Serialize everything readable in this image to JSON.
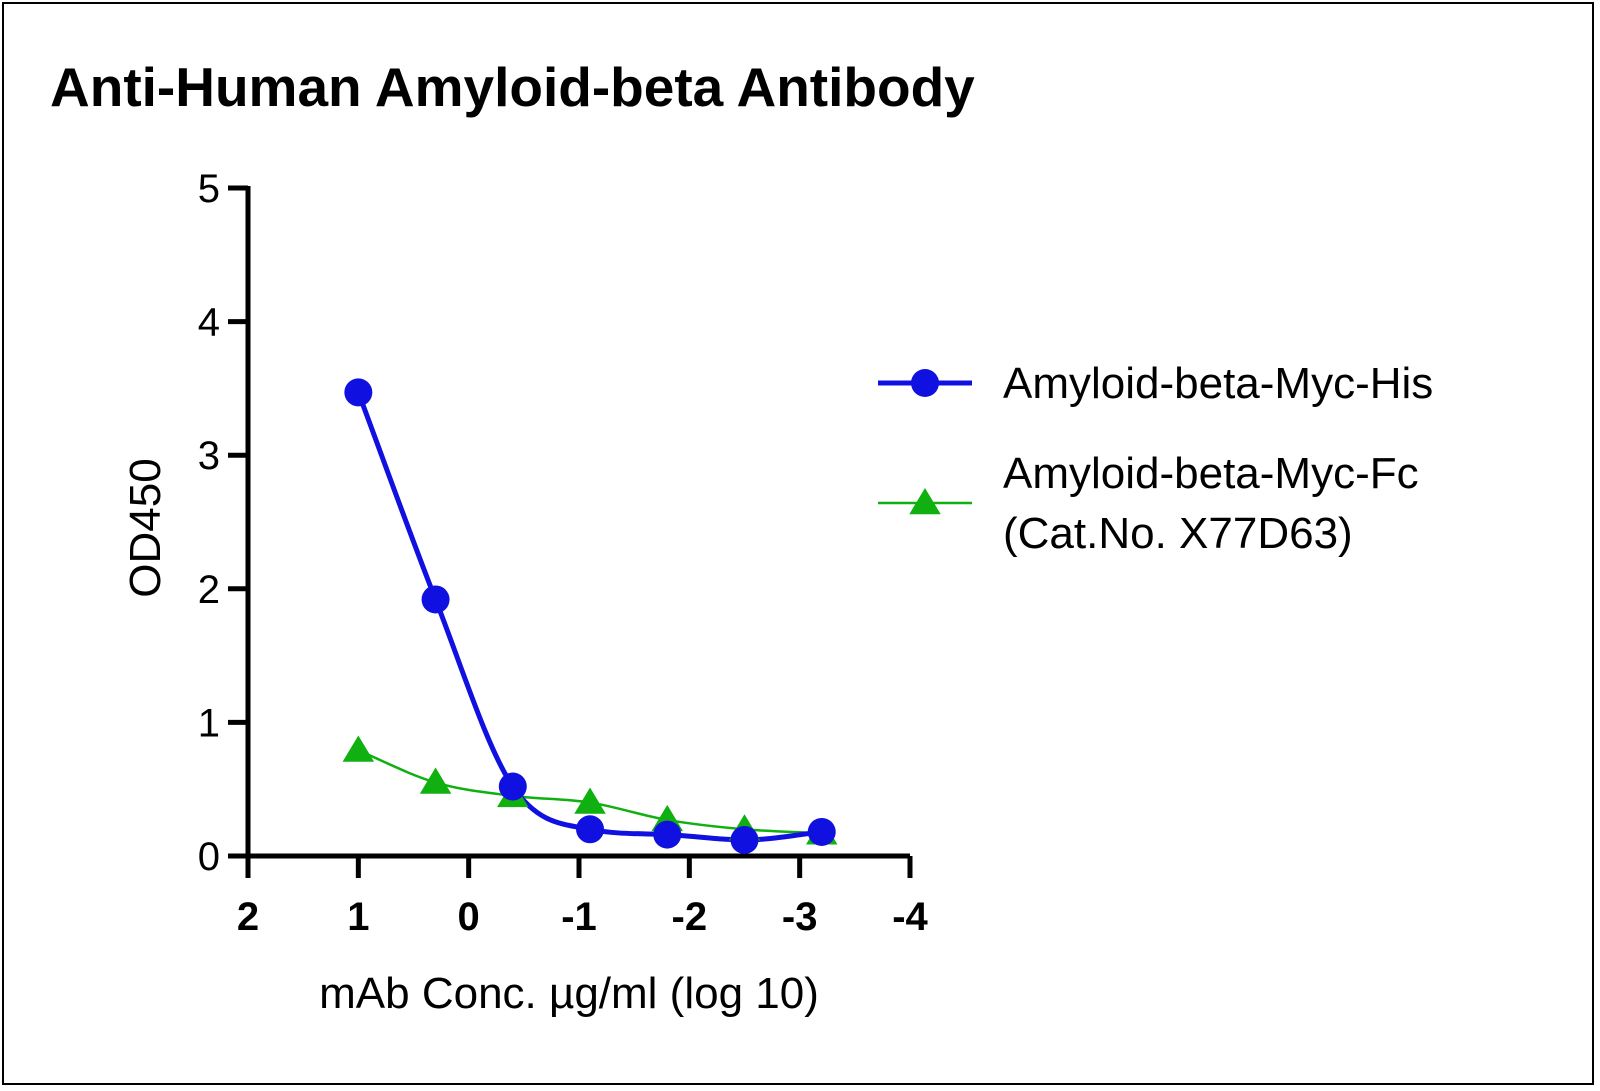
{
  "chart_data": {
    "type": "line",
    "title": "Anti-Human Amyloid-beta Antibody",
    "xlabel": "mAb Conc. µg/ml (log 10)",
    "ylabel": "OD450",
    "xlim": [
      2,
      -4
    ],
    "ylim": [
      0,
      5
    ],
    "x_ticks": [
      "2",
      "1",
      "0",
      "-1",
      "-2",
      "-3",
      "-4"
    ],
    "y_ticks": [
      "0",
      "1",
      "2",
      "3",
      "4",
      "5"
    ],
    "grid": false,
    "legend_position": "right",
    "series": [
      {
        "name": "Amyloid-beta-Myc-His",
        "marker": "circle",
        "color": "#1010e0",
        "x": [
          1.0,
          0.3,
          -0.4,
          -1.1,
          -1.8,
          -2.5,
          -3.2
        ],
        "y": [
          3.47,
          1.92,
          0.52,
          0.2,
          0.16,
          0.12,
          0.18
        ],
        "fit": "sigmoidal"
      },
      {
        "name": "Amyloid-beta-Myc-Fc\n(Cat.No. X77D63)",
        "legend_lines": [
          "Amyloid-beta-Myc-Fc",
          "(Cat.No. X77D63)"
        ],
        "marker": "triangle",
        "color": "#10b010",
        "x": [
          1.0,
          0.3,
          -0.4,
          -1.1,
          -1.8,
          -2.5,
          -3.2
        ],
        "y": [
          0.79,
          0.55,
          0.45,
          0.4,
          0.27,
          0.2,
          0.17
        ],
        "fit": "smooth-decay"
      }
    ]
  }
}
